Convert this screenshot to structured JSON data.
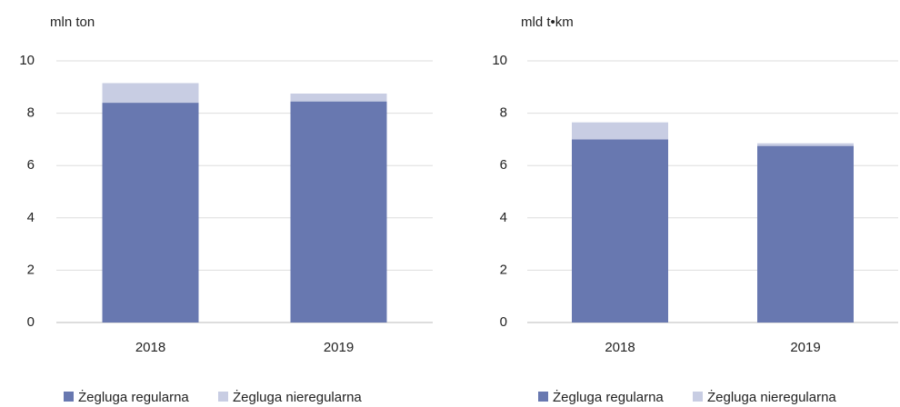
{
  "chart_data": [
    {
      "type": "bar",
      "stacked": true,
      "y_label": "mln ton",
      "categories": [
        "2018",
        "2019"
      ],
      "series": [
        {
          "name": "Żegluga regularna",
          "color": "#6878b0",
          "values": [
            8.4,
            8.45
          ]
        },
        {
          "name": "Żegluga nieregularna",
          "color": "#c8cde3",
          "values": [
            0.75,
            0.3
          ]
        }
      ],
      "ylim": [
        0,
        10
      ],
      "yticks": [
        0,
        2,
        4,
        6,
        8,
        10
      ],
      "grid": true
    },
    {
      "type": "bar",
      "stacked": true,
      "y_label": "mld t•km",
      "categories": [
        "2018",
        "2019"
      ],
      "series": [
        {
          "name": "Żegluga regularna",
          "color": "#6878b0",
          "values": [
            7.0,
            6.75
          ]
        },
        {
          "name": "Żegluga nieregularna",
          "color": "#c8cde3",
          "values": [
            0.65,
            0.1
          ]
        }
      ],
      "ylim": [
        0,
        10
      ],
      "yticks": [
        0,
        2,
        4,
        6,
        8,
        10
      ],
      "grid": true
    }
  ]
}
